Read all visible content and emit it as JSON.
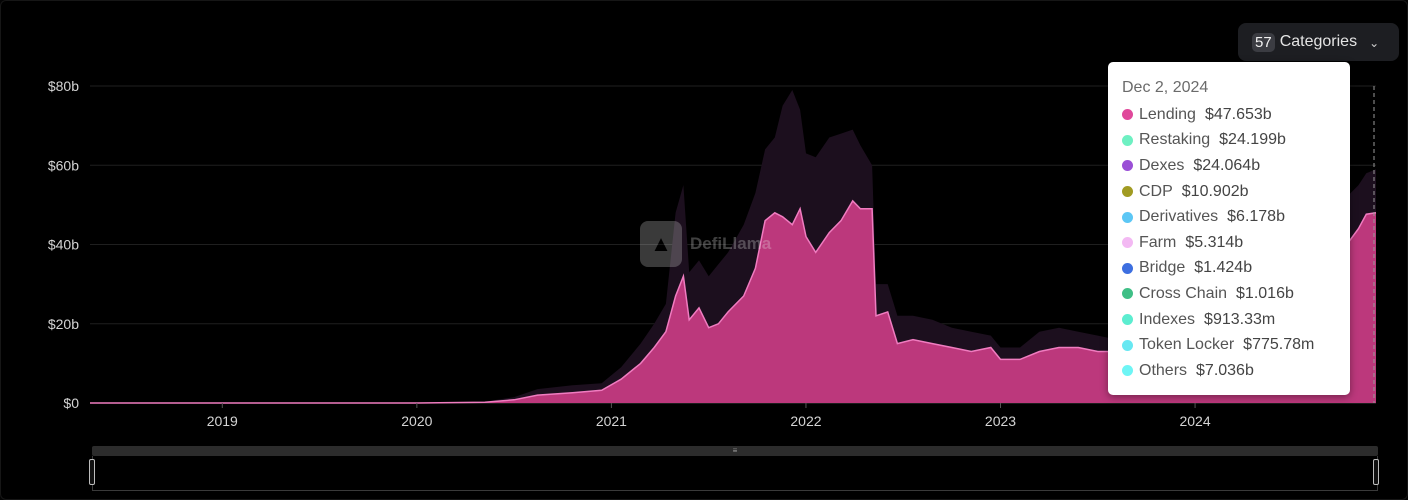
{
  "controls": {
    "categories_count": "57",
    "categories_label": "Categories"
  },
  "watermark": {
    "text": "DefiLlama"
  },
  "tooltip": {
    "date": "Dec 2, 2024",
    "items": [
      {
        "name": "Lending",
        "value": "$47.653b",
        "color": "#e0489b"
      },
      {
        "name": "Restaking",
        "value": "$24.199b",
        "color": "#6ef0c2"
      },
      {
        "name": "Dexes",
        "value": "$24.064b",
        "color": "#9a4fd6"
      },
      {
        "name": "CDP",
        "value": "$10.902b",
        "color": "#a19b22"
      },
      {
        "name": "Derivatives",
        "value": "$6.178b",
        "color": "#5cc7f5"
      },
      {
        "name": "Farm",
        "value": "$5.314b",
        "color": "#f3b9f3"
      },
      {
        "name": "Bridge",
        "value": "$1.424b",
        "color": "#3d6fe0"
      },
      {
        "name": "Cross Chain",
        "value": "$1.016b",
        "color": "#3fbf86"
      },
      {
        "name": "Indexes",
        "value": "$913.33m",
        "color": "#5cedd0"
      },
      {
        "name": "Token Locker",
        "value": "$775.78m",
        "color": "#67e8f2"
      },
      {
        "name": "Others",
        "value": "$7.036b",
        "color": "#6ef5f5"
      }
    ]
  },
  "chart_data": {
    "type": "area",
    "x_ticks": [
      "2019",
      "2020",
      "2021",
      "2022",
      "2023",
      "2024"
    ],
    "y_ticks": [
      "$0",
      "$20b",
      "$40b",
      "$60b",
      "$80b"
    ],
    "ylim": [
      0,
      80
    ],
    "xlim": [
      2018.32,
      2024.93
    ],
    "grid": true,
    "colors": {
      "lending": "#d83f8d",
      "total": "#1c0f1e"
    },
    "series": [
      {
        "name": "Lending",
        "points": [
          [
            2018.32,
            0
          ],
          [
            2019.0,
            0
          ],
          [
            2020.0,
            0
          ],
          [
            2020.35,
            0.2
          ],
          [
            2020.5,
            0.8
          ],
          [
            2020.62,
            2
          ],
          [
            2020.8,
            2.6
          ],
          [
            2020.95,
            3.2
          ],
          [
            2021.05,
            6
          ],
          [
            2021.15,
            10
          ],
          [
            2021.22,
            14
          ],
          [
            2021.28,
            18
          ],
          [
            2021.33,
            27
          ],
          [
            2021.37,
            32
          ],
          [
            2021.4,
            21
          ],
          [
            2021.45,
            24
          ],
          [
            2021.5,
            19
          ],
          [
            2021.55,
            20
          ],
          [
            2021.6,
            23
          ],
          [
            2021.68,
            27
          ],
          [
            2021.74,
            34
          ],
          [
            2021.79,
            46
          ],
          [
            2021.84,
            48
          ],
          [
            2021.88,
            47
          ],
          [
            2021.93,
            45
          ],
          [
            2021.97,
            49
          ],
          [
            2022.0,
            42
          ],
          [
            2022.05,
            38
          ],
          [
            2022.12,
            43
          ],
          [
            2022.18,
            46
          ],
          [
            2022.24,
            51
          ],
          [
            2022.28,
            49
          ],
          [
            2022.34,
            49
          ],
          [
            2022.36,
            22
          ],
          [
            2022.42,
            23
          ],
          [
            2022.47,
            15
          ],
          [
            2022.55,
            16
          ],
          [
            2022.65,
            15
          ],
          [
            2022.75,
            14
          ],
          [
            2022.85,
            13
          ],
          [
            2022.95,
            14
          ],
          [
            2023.0,
            11
          ],
          [
            2023.1,
            11
          ],
          [
            2023.2,
            13
          ],
          [
            2023.3,
            14
          ],
          [
            2023.4,
            14
          ],
          [
            2023.5,
            13
          ],
          [
            2023.6,
            13
          ],
          [
            2023.7,
            15
          ],
          [
            2023.8,
            17
          ],
          [
            2023.9,
            16
          ],
          [
            2024.0,
            19
          ],
          [
            2024.1,
            21
          ],
          [
            2024.2,
            24
          ],
          [
            2024.3,
            23
          ],
          [
            2024.4,
            22
          ],
          [
            2024.5,
            22
          ],
          [
            2024.6,
            23
          ],
          [
            2024.7,
            30
          ],
          [
            2024.78,
            40
          ],
          [
            2024.84,
            44
          ],
          [
            2024.88,
            47.653
          ],
          [
            2024.93,
            48
          ]
        ]
      },
      {
        "name": "Total",
        "points": [
          [
            2018.32,
            0
          ],
          [
            2019.0,
            0
          ],
          [
            2020.0,
            0
          ],
          [
            2020.35,
            0.3
          ],
          [
            2020.5,
            1.5
          ],
          [
            2020.62,
            3.5
          ],
          [
            2020.8,
            4.5
          ],
          [
            2020.95,
            5
          ],
          [
            2021.05,
            9
          ],
          [
            2021.15,
            15
          ],
          [
            2021.22,
            20
          ],
          [
            2021.28,
            25
          ],
          [
            2021.33,
            48
          ],
          [
            2021.37,
            55
          ],
          [
            2021.4,
            33
          ],
          [
            2021.45,
            36
          ],
          [
            2021.5,
            32
          ],
          [
            2021.55,
            35
          ],
          [
            2021.6,
            38
          ],
          [
            2021.68,
            45
          ],
          [
            2021.74,
            53
          ],
          [
            2021.79,
            64
          ],
          [
            2021.84,
            67
          ],
          [
            2021.88,
            75
          ],
          [
            2021.93,
            79
          ],
          [
            2021.97,
            74
          ],
          [
            2022.0,
            63
          ],
          [
            2022.05,
            62
          ],
          [
            2022.12,
            67
          ],
          [
            2022.18,
            68
          ],
          [
            2022.24,
            69
          ],
          [
            2022.28,
            65
          ],
          [
            2022.34,
            60
          ],
          [
            2022.36,
            30
          ],
          [
            2022.42,
            30
          ],
          [
            2022.47,
            22
          ],
          [
            2022.55,
            22
          ],
          [
            2022.65,
            21
          ],
          [
            2022.75,
            19
          ],
          [
            2022.85,
            18
          ],
          [
            2022.95,
            17
          ],
          [
            2023.0,
            14
          ],
          [
            2023.1,
            14
          ],
          [
            2023.2,
            18
          ],
          [
            2023.3,
            19
          ],
          [
            2023.4,
            18
          ],
          [
            2023.5,
            17
          ],
          [
            2023.6,
            16
          ],
          [
            2023.7,
            19
          ],
          [
            2023.8,
            22
          ],
          [
            2023.9,
            22
          ],
          [
            2024.0,
            24
          ],
          [
            2024.1,
            26
          ],
          [
            2024.2,
            30
          ],
          [
            2024.3,
            29
          ],
          [
            2024.4,
            28
          ],
          [
            2024.5,
            28
          ],
          [
            2024.6,
            30
          ],
          [
            2024.7,
            42
          ],
          [
            2024.78,
            52
          ],
          [
            2024.84,
            55
          ],
          [
            2024.88,
            58
          ],
          [
            2024.93,
            59
          ]
        ]
      }
    ]
  }
}
